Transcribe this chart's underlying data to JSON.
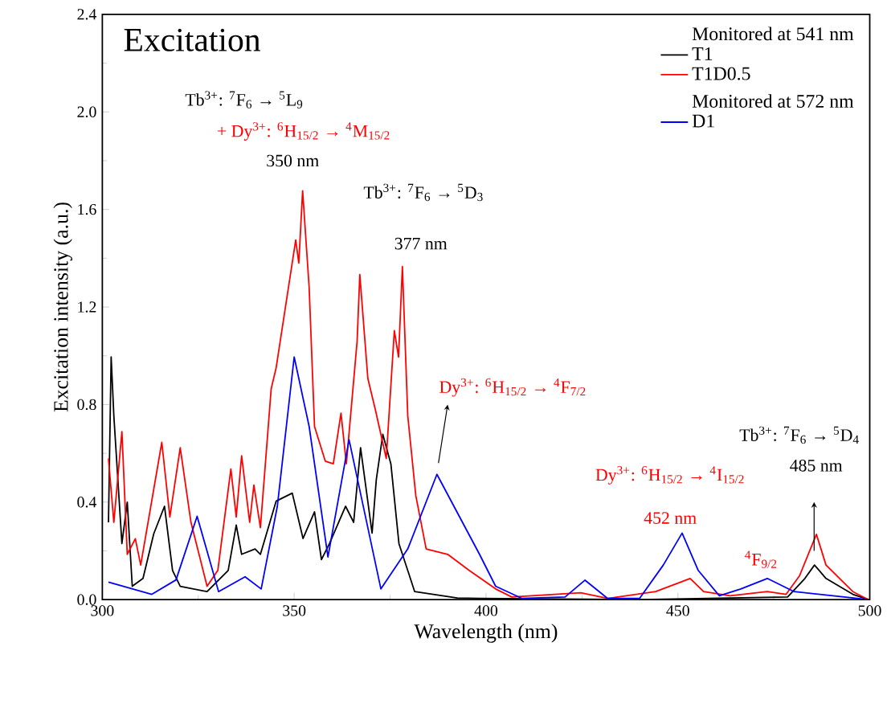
{
  "chart_data": {
    "type": "line",
    "title": "Excitation",
    "xlabel": "Wavelength (nm)",
    "ylabel": "Excitation intensity (a.u.)",
    "legend_title": "Monitored at 541 nm",
    "legend": "top right",
    "xlim": [
      300,
      500
    ],
    "ylim": [
      0,
      2.4
    ],
    "xticks": [
      300,
      350,
      400,
      450,
      500
    ],
    "yticks": [
      {
        "value": 0,
        "label": "0.0"
      },
      {
        "value": 0.4,
        "label": "0.4"
      },
      {
        "value": 0.8,
        "label": "0.8"
      },
      {
        "value": 1.2,
        "label": "1.2"
      },
      {
        "value": 1.6,
        "label": "1.6"
      },
      {
        "value": 2.0,
        "label": "2.0"
      },
      {
        "value": 2.4,
        "label": "2.4"
      }
    ],
    "annotations": [
      "Tb$^{3+}$: $^{7}$F$_{6}$ → $^{5}$L$_{9}$",
      "+ Dy$^{3+}$: $^{6}$H$_{15/2}$ → $^{4}$M$_{15/2}$",
      "350 nm",
      "Tb$^{3+}$: $^{7}$F$_{6}$ → $^{5}$D$_{3}$",
      "377 nm",
      "Dy$^{3+}$: $^{6}$H$_{15/2}$ → $^{4}$F$_{7/2}$",
      "Dy$^{3+}$: $^{6}$H$_{15/2}$ → $^{4}$I$_{15/2}$",
      "452 nm",
      "$^{4}$F$_{9/2}$",
      "Tb$^{3+}$: $^{7}$F$_{6}$ → $^{5}$D$_{4}$",
      "485 nm",
      "Monitored at 572 nm"
    ],
    "series": [
      {
        "name": "T1",
        "color": "#000000",
        "x": [
          301.6,
          302.3,
          303,
          305.1,
          306.5,
          307.8,
          310.6,
          313.4,
          316.2,
          318.3,
          320.3,
          327.3,
          332.8,
          334.9,
          336.3,
          339.8,
          341.2,
          345.3,
          349.5,
          352.3,
          355.3,
          357.1,
          359.2,
          363.4,
          365.5,
          367.3,
          370.3,
          371.4,
          373.1,
          375.2,
          377.3,
          381.4,
          392.5,
          398.3,
          440,
          478.6,
          483.1,
          485.6,
          488.6,
          495.6,
          499.7
        ],
        "values": [
          0.317,
          0.995,
          0.754,
          0.23,
          0.4,
          0.055,
          0.087,
          0.27,
          0.383,
          0.12,
          0.055,
          0.033,
          0.12,
          0.306,
          0.186,
          0.208,
          0.186,
          0.404,
          0.437,
          0.251,
          0.36,
          0.164,
          0.23,
          0.383,
          0.317,
          0.623,
          0.273,
          0.492,
          0.678,
          0.557,
          0.23,
          0.033,
          0.007,
          0.005,
          0.0,
          0.011,
          0.087,
          0.142,
          0.087,
          0.022,
          0.0
        ]
      },
      {
        "name": "T1D0.5",
        "color": "#ff0000",
        "x": [
          301.6,
          303,
          305.1,
          306.5,
          308.6,
          310,
          315.5,
          317.6,
          320.3,
          323.1,
          327.3,
          330.1,
          333.5,
          334.9,
          336.3,
          338.4,
          339.5,
          341.2,
          344,
          345.3,
          350.4,
          351.2,
          352.2,
          353.9,
          355.3,
          358.1,
          360.2,
          362.2,
          363.6,
          366.4,
          367.1,
          369.2,
          371.2,
          374,
          376.1,
          377.2,
          378.2,
          379.6,
          381.7,
          384.4,
          390,
          395.6,
          402.5,
          406.7,
          424.7,
          431.7,
          444.2,
          453.2,
          456.7,
          463.6,
          473.3,
          478.2,
          481.7,
          486.1,
          488.6,
          495.6,
          499.7
        ],
        "values": [
          0.579,
          0.317,
          0.689,
          0.186,
          0.25,
          0.142,
          0.645,
          0.339,
          0.623,
          0.317,
          0.055,
          0.12,
          0.536,
          0.339,
          0.59,
          0.317,
          0.47,
          0.295,
          0.864,
          0.951,
          1.475,
          1.38,
          1.677,
          1.28,
          0.71,
          0.568,
          0.557,
          0.765,
          0.557,
          1.06,
          1.333,
          0.907,
          0.776,
          0.579,
          1.103,
          0.995,
          1.366,
          0.754,
          0.426,
          0.208,
          0.186,
          0.12,
          0.044,
          0.011,
          0.028,
          0.005,
          0.033,
          0.087,
          0.033,
          0.016,
          0.033,
          0.022,
          0.098,
          0.268,
          0.142,
          0.033,
          0.0
        ]
      },
      {
        "name": "D1",
        "color": "#0000ff",
        "x": [
          301.6,
          312.9,
          319.2,
          324.7,
          330.3,
          337.2,
          341.4,
          345.6,
          350,
          353.9,
          358.8,
          364.3,
          372.6,
          379.6,
          387.2,
          398.3,
          402.5,
          409.4,
          420.6,
          425.8,
          431.7,
          440,
          446.2,
          451.1,
          455.3,
          460.8,
          466.4,
          473.3,
          480.3,
          499.7
        ],
        "values": [
          0.072,
          0.022,
          0.081,
          0.342,
          0.033,
          0.094,
          0.044,
          0.382,
          0.995,
          0.71,
          0.175,
          0.656,
          0.044,
          0.208,
          0.514,
          0.186,
          0.055,
          0.005,
          0.011,
          0.08,
          0.005,
          0.005,
          0.142,
          0.273,
          0.12,
          0.016,
          0.044,
          0.087,
          0.033,
          0.0
        ]
      }
    ]
  }
}
